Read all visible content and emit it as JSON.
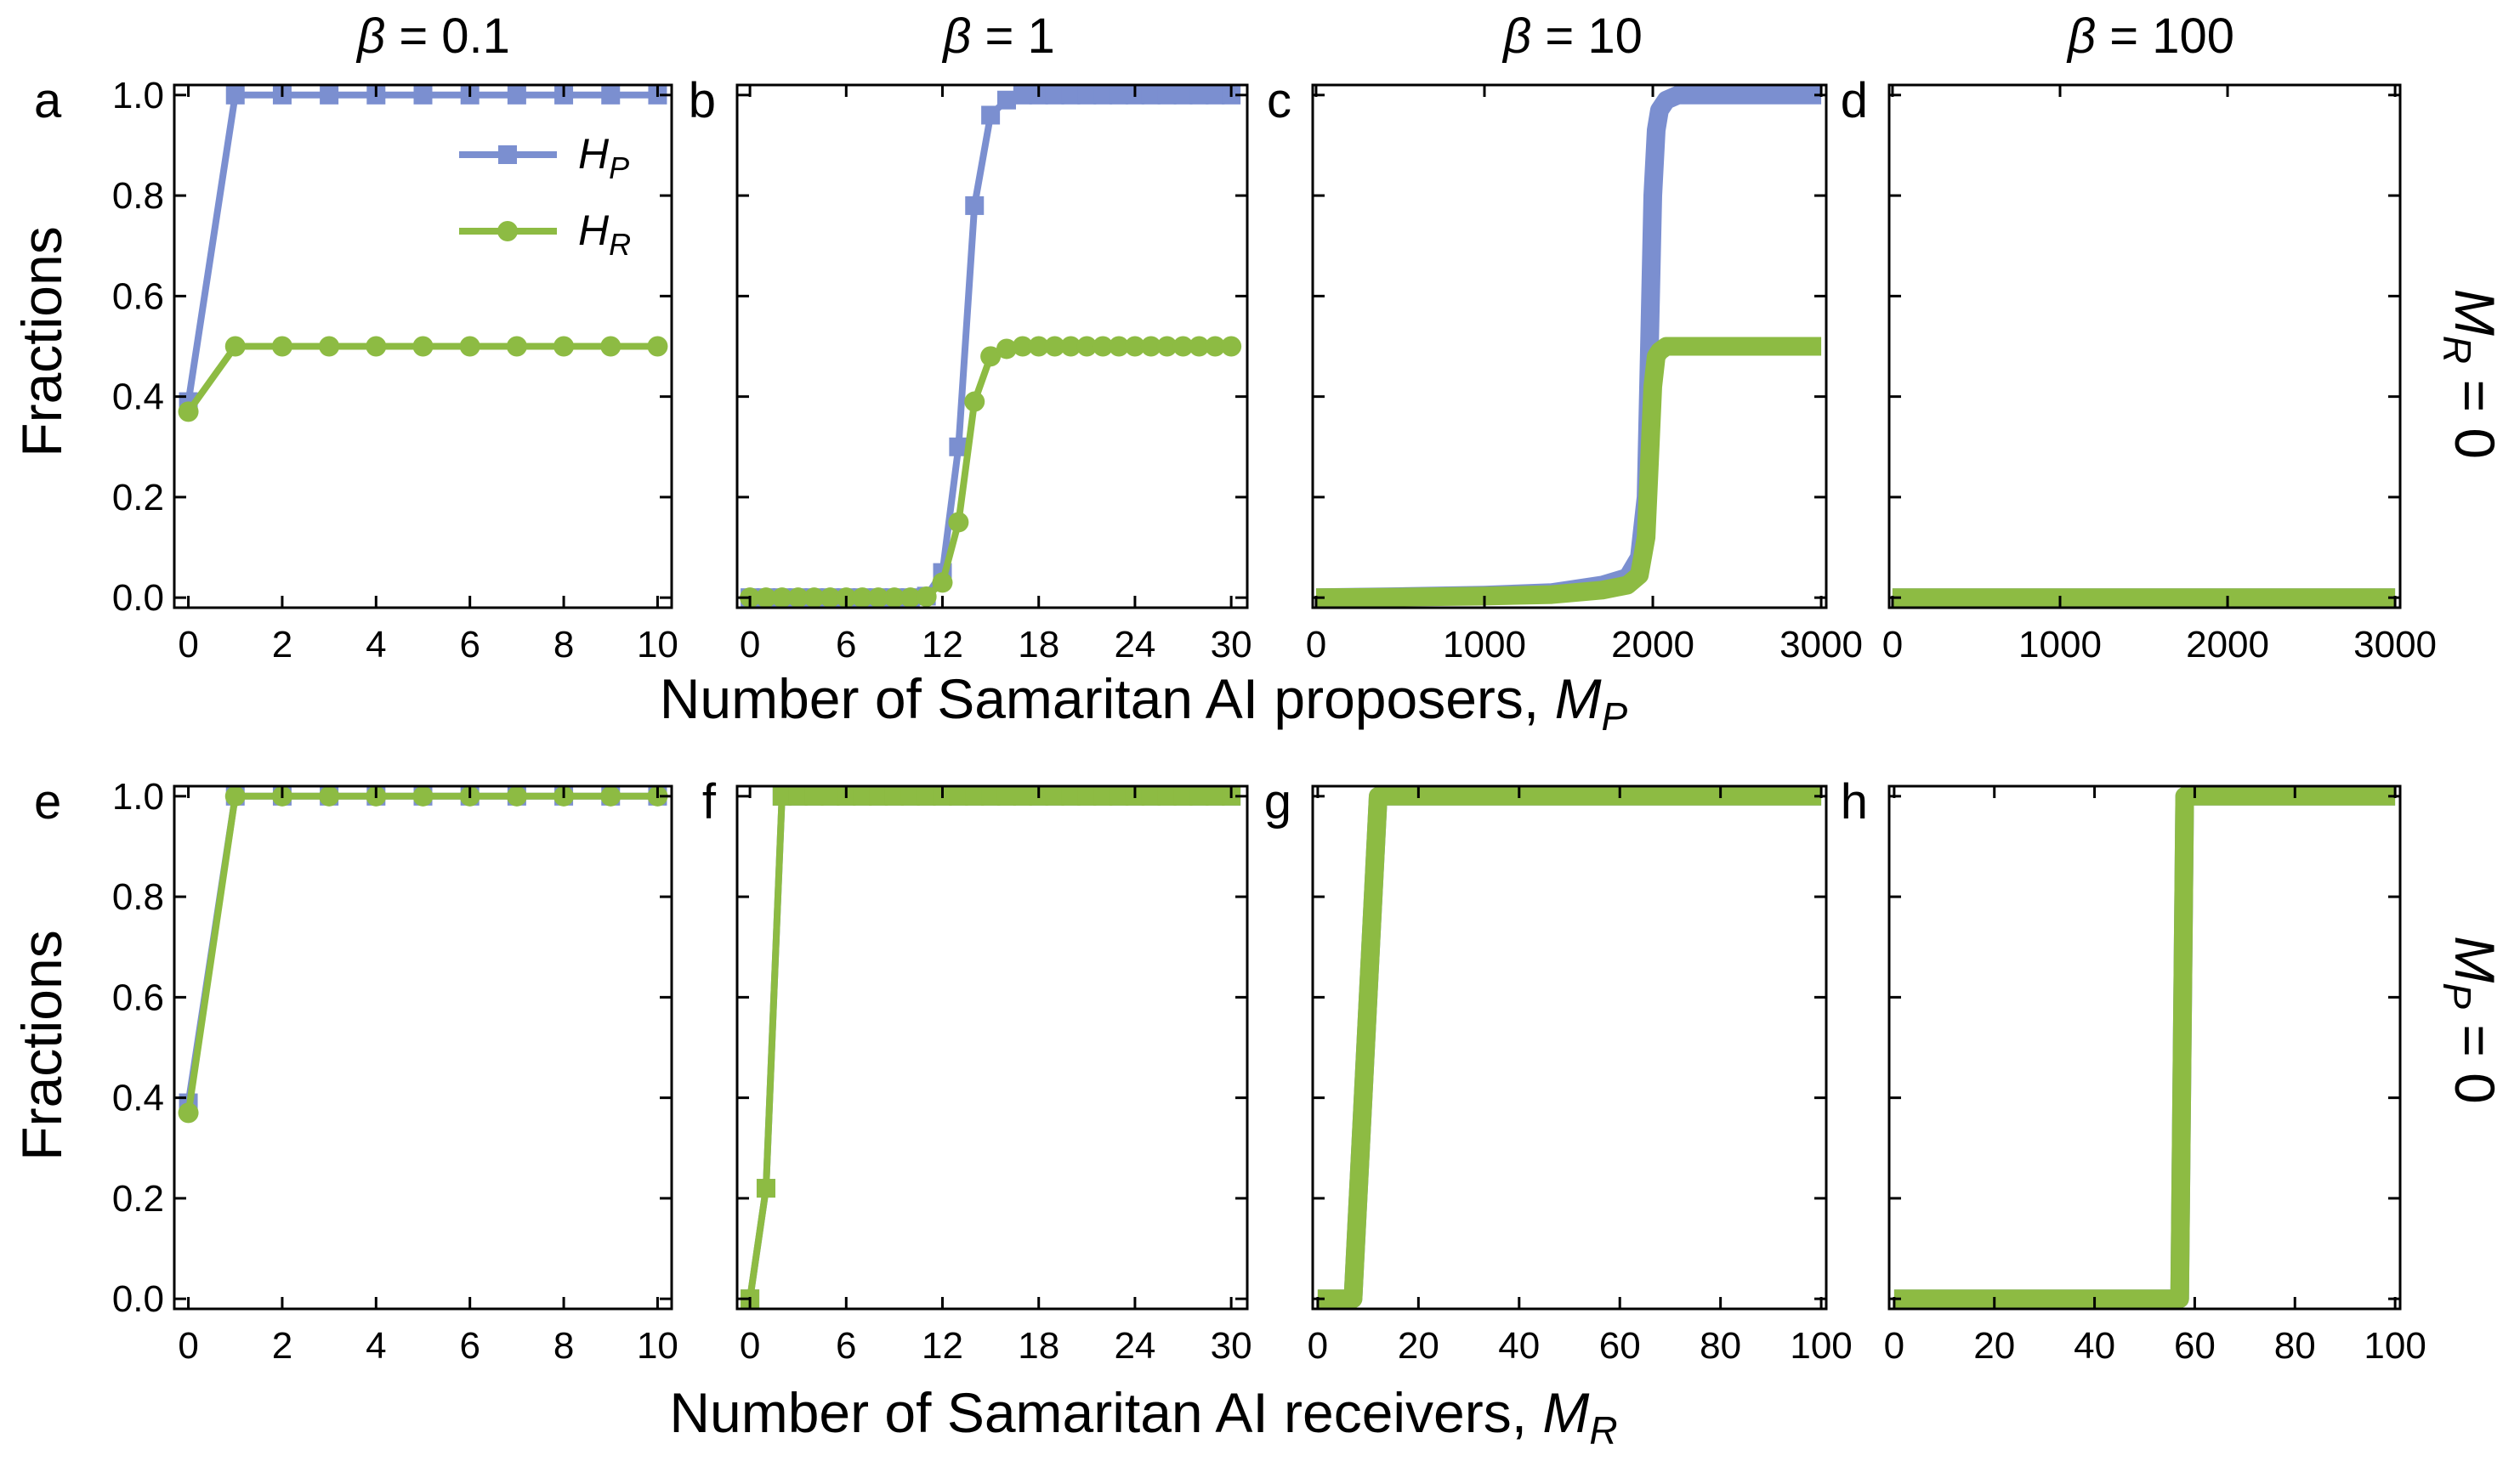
{
  "colors": {
    "HP": "#7b8fd0",
    "HR": "#8dbb43"
  },
  "row_titles": [
    {
      "beta_symbol": "β",
      "rest": " = 0.1"
    },
    {
      "beta_symbol": "β",
      "rest": " = 1"
    },
    {
      "beta_symbol": "β",
      "rest": " = 10"
    },
    {
      "beta_symbol": "β",
      "rest": " = 100"
    }
  ],
  "side_labels": [
    {
      "main": "M",
      "sub": "R",
      "rest": " = 0"
    },
    {
      "main": "M",
      "sub": "P",
      "rest": " = 0"
    }
  ],
  "xlabels": [
    {
      "text": "Number of  Samaritan AI proposers, ",
      "main": "M",
      "sub": "P"
    },
    {
      "text": "Number of  Samaritan AI receivers, ",
      "main": "M",
      "sub": "R"
    }
  ],
  "ylabel": "Fractions",
  "legend": [
    {
      "main": "H",
      "sub": "P",
      "series": "HP"
    },
    {
      "main": "H",
      "sub": "R",
      "series": "HR"
    }
  ],
  "chart_data": [
    {
      "panel": "a",
      "type": "line",
      "xlim": [
        -0.3,
        10.3
      ],
      "ylim": [
        -0.02,
        1.02
      ],
      "xticks": [
        0,
        2,
        4,
        6,
        8,
        10
      ],
      "yticks": [
        0.0,
        0.2,
        0.4,
        0.6,
        0.8,
        1.0
      ],
      "show_ytick_labels": true,
      "series": [
        {
          "name": "HP",
          "x": [
            0,
            1,
            2,
            3,
            4,
            5,
            6,
            7,
            8,
            9,
            10
          ],
          "y": [
            0.39,
            1.0,
            1.0,
            1.0,
            1.0,
            1.0,
            1.0,
            1.0,
            1.0,
            1.0,
            1.0
          ],
          "marker": "square"
        },
        {
          "name": "HR",
          "x": [
            0,
            1,
            2,
            3,
            4,
            5,
            6,
            7,
            8,
            9,
            10
          ],
          "y": [
            0.37,
            0.5,
            0.5,
            0.5,
            0.5,
            0.5,
            0.5,
            0.5,
            0.5,
            0.5,
            0.5
          ],
          "marker": "circle"
        }
      ]
    },
    {
      "panel": "b",
      "type": "line",
      "xlim": [
        -0.8,
        31
      ],
      "ylim": [
        -0.02,
        1.02
      ],
      "xticks": [
        0,
        6,
        12,
        18,
        24,
        30
      ],
      "yticks": [
        0.0,
        0.2,
        0.4,
        0.6,
        0.8,
        1.0
      ],
      "show_ytick_labels": false,
      "series": [
        {
          "name": "HP",
          "x": [
            0,
            1,
            2,
            3,
            4,
            5,
            6,
            7,
            8,
            9,
            10,
            11,
            12,
            13,
            14,
            15,
            16,
            17,
            18,
            19,
            20,
            21,
            22,
            23,
            24,
            25,
            26,
            27,
            28,
            29,
            30
          ],
          "y": [
            0.0,
            0.0,
            0.0,
            0.0,
            0.0,
            0.0,
            0.0,
            0.0,
            0.0,
            0.0,
            0.0,
            0.003,
            0.05,
            0.3,
            0.78,
            0.96,
            0.99,
            1.0,
            1.0,
            1.0,
            1.0,
            1.0,
            1.0,
            1.0,
            1.0,
            1.0,
            1.0,
            1.0,
            1.0,
            1.0,
            1.0
          ],
          "marker": "square"
        },
        {
          "name": "HR",
          "x": [
            0,
            1,
            2,
            3,
            4,
            5,
            6,
            7,
            8,
            9,
            10,
            11,
            12,
            13,
            14,
            15,
            16,
            17,
            18,
            19,
            20,
            21,
            22,
            23,
            24,
            25,
            26,
            27,
            28,
            29,
            30
          ],
          "y": [
            0.0,
            0.0,
            0.0,
            0.0,
            0.0,
            0.0,
            0.0,
            0.0,
            0.0,
            0.0,
            0.0,
            0.002,
            0.03,
            0.15,
            0.39,
            0.48,
            0.495,
            0.5,
            0.5,
            0.5,
            0.5,
            0.5,
            0.5,
            0.5,
            0.5,
            0.5,
            0.5,
            0.5,
            0.5,
            0.5,
            0.5
          ],
          "marker": "circle"
        }
      ]
    },
    {
      "panel": "c",
      "type": "line",
      "xlim": [
        -20,
        3030
      ],
      "ylim": [
        -0.02,
        1.02
      ],
      "xticks": [
        0,
        1000,
        2000,
        3000
      ],
      "xtick_labels": [
        "0",
        "1000",
        "2000",
        "3000"
      ],
      "yticks": [
        0.0,
        0.2,
        0.4,
        0.6,
        0.8,
        1.0
      ],
      "show_ytick_labels": false,
      "series": [
        {
          "name": "HP",
          "x": [
            0,
            500,
            1000,
            1400,
            1700,
            1850,
            1920,
            1960,
            1980,
            2000,
            2020,
            2040,
            2080,
            2150,
            2300,
            2600,
            3000
          ],
          "y": [
            0.0,
            0.002,
            0.005,
            0.01,
            0.025,
            0.04,
            0.08,
            0.2,
            0.5,
            0.8,
            0.93,
            0.97,
            0.99,
            1.0,
            1.0,
            1.0,
            1.0
          ],
          "thick": true
        },
        {
          "name": "HR",
          "x": [
            0,
            500,
            1000,
            1400,
            1700,
            1850,
            1920,
            1960,
            1980,
            2000,
            2020,
            2040,
            2080,
            2150,
            2300,
            2600,
            3000
          ],
          "y": [
            0.0,
            0.001,
            0.003,
            0.006,
            0.015,
            0.025,
            0.045,
            0.12,
            0.27,
            0.42,
            0.48,
            0.49,
            0.5,
            0.5,
            0.5,
            0.5,
            0.5
          ],
          "thick": true
        }
      ]
    },
    {
      "panel": "d",
      "type": "line",
      "xlim": [
        -20,
        3030
      ],
      "ylim": [
        -0.02,
        1.02
      ],
      "xticks": [
        0,
        1000,
        2000,
        3000
      ],
      "xtick_labels": [
        "0",
        "1000",
        "2000",
        "3000"
      ],
      "yticks": [
        0.0,
        0.2,
        0.4,
        0.6,
        0.8,
        1.0
      ],
      "show_ytick_labels": false,
      "series": [
        {
          "name": "HP",
          "x": [
            0,
            3000
          ],
          "y": [
            0.0,
            0.0
          ],
          "thick": true
        },
        {
          "name": "HR",
          "x": [
            0,
            3000
          ],
          "y": [
            0.0,
            0.0
          ],
          "thick": true
        }
      ]
    },
    {
      "panel": "e",
      "type": "line",
      "xlim": [
        -0.3,
        10.3
      ],
      "ylim": [
        -0.02,
        1.02
      ],
      "xticks": [
        0,
        2,
        4,
        6,
        8,
        10
      ],
      "yticks": [
        0.0,
        0.2,
        0.4,
        0.6,
        0.8,
        1.0
      ],
      "show_ytick_labels": true,
      "series": [
        {
          "name": "HP",
          "x": [
            0,
            1,
            2,
            3,
            4,
            5,
            6,
            7,
            8,
            9,
            10
          ],
          "y": [
            0.39,
            1.0,
            1.0,
            1.0,
            1.0,
            1.0,
            1.0,
            1.0,
            1.0,
            1.0,
            1.0
          ],
          "marker": "square"
        },
        {
          "name": "HR",
          "x": [
            0,
            1,
            2,
            3,
            4,
            5,
            6,
            7,
            8,
            9,
            10
          ],
          "y": [
            0.37,
            1.0,
            1.0,
            1.0,
            1.0,
            1.0,
            1.0,
            1.0,
            1.0,
            1.0,
            1.0
          ],
          "marker": "circle"
        }
      ]
    },
    {
      "panel": "f",
      "type": "line",
      "xlim": [
        -0.8,
        31
      ],
      "ylim": [
        -0.02,
        1.02
      ],
      "xticks": [
        0,
        6,
        12,
        18,
        24,
        30
      ],
      "yticks": [
        0.0,
        0.2,
        0.4,
        0.6,
        0.8,
        1.0
      ],
      "show_ytick_labels": false,
      "series": [
        {
          "name": "HP",
          "x": [
            0,
            1,
            2,
            3,
            4,
            5,
            6,
            7,
            8,
            9,
            10,
            11,
            12,
            13,
            14,
            15,
            16,
            17,
            18,
            19,
            20,
            21,
            22,
            23,
            24,
            25,
            26,
            27,
            28,
            29,
            30
          ],
          "y": [
            0.0,
            0.22,
            1.0,
            1.0,
            1.0,
            1.0,
            1.0,
            1.0,
            1.0,
            1.0,
            1.0,
            1.0,
            1.0,
            1.0,
            1.0,
            1.0,
            1.0,
            1.0,
            1.0,
            1.0,
            1.0,
            1.0,
            1.0,
            1.0,
            1.0,
            1.0,
            1.0,
            1.0,
            1.0,
            1.0,
            1.0
          ],
          "marker": "square"
        },
        {
          "name": "HR",
          "x": [
            0,
            1,
            2,
            3,
            4,
            5,
            6,
            7,
            8,
            9,
            10,
            11,
            12,
            13,
            14,
            15,
            16,
            17,
            18,
            19,
            20,
            21,
            22,
            23,
            24,
            25,
            26,
            27,
            28,
            29,
            30
          ],
          "y": [
            0.0,
            0.22,
            1.0,
            1.0,
            1.0,
            1.0,
            1.0,
            1.0,
            1.0,
            1.0,
            1.0,
            1.0,
            1.0,
            1.0,
            1.0,
            1.0,
            1.0,
            1.0,
            1.0,
            1.0,
            1.0,
            1.0,
            1.0,
            1.0,
            1.0,
            1.0,
            1.0,
            1.0,
            1.0,
            1.0,
            1.0
          ],
          "marker": "square"
        }
      ]
    },
    {
      "panel": "g",
      "type": "line",
      "xlim": [
        -1,
        101
      ],
      "ylim": [
        -0.02,
        1.02
      ],
      "xticks": [
        0,
        20,
        40,
        60,
        80,
        100
      ],
      "yticks": [
        0.0,
        0.2,
        0.4,
        0.6,
        0.8,
        1.0
      ],
      "show_ytick_labels": false,
      "series": [
        {
          "name": "HP",
          "x": [
            0,
            7,
            12,
            100
          ],
          "y": [
            0.0,
            0.0,
            1.0,
            1.0
          ],
          "thick": true
        },
        {
          "name": "HR",
          "x": [
            0,
            7,
            12,
            100
          ],
          "y": [
            0.0,
            0.0,
            1.0,
            1.0
          ],
          "thick": true
        }
      ]
    },
    {
      "panel": "h",
      "type": "line",
      "xlim": [
        -1,
        101
      ],
      "ylim": [
        -0.02,
        1.02
      ],
      "xticks": [
        0,
        20,
        40,
        60,
        80,
        100
      ],
      "yticks": [
        0.0,
        0.2,
        0.4,
        0.6,
        0.8,
        1.0
      ],
      "show_ytick_labels": false,
      "series": [
        {
          "name": "HP",
          "x": [
            0,
            57,
            58,
            100
          ],
          "y": [
            0.0,
            0.0,
            1.0,
            1.0
          ],
          "thick": true
        },
        {
          "name": "HR",
          "x": [
            0,
            57,
            58,
            100
          ],
          "y": [
            0.0,
            0.0,
            1.0,
            1.0
          ],
          "thick": true
        }
      ]
    }
  ]
}
